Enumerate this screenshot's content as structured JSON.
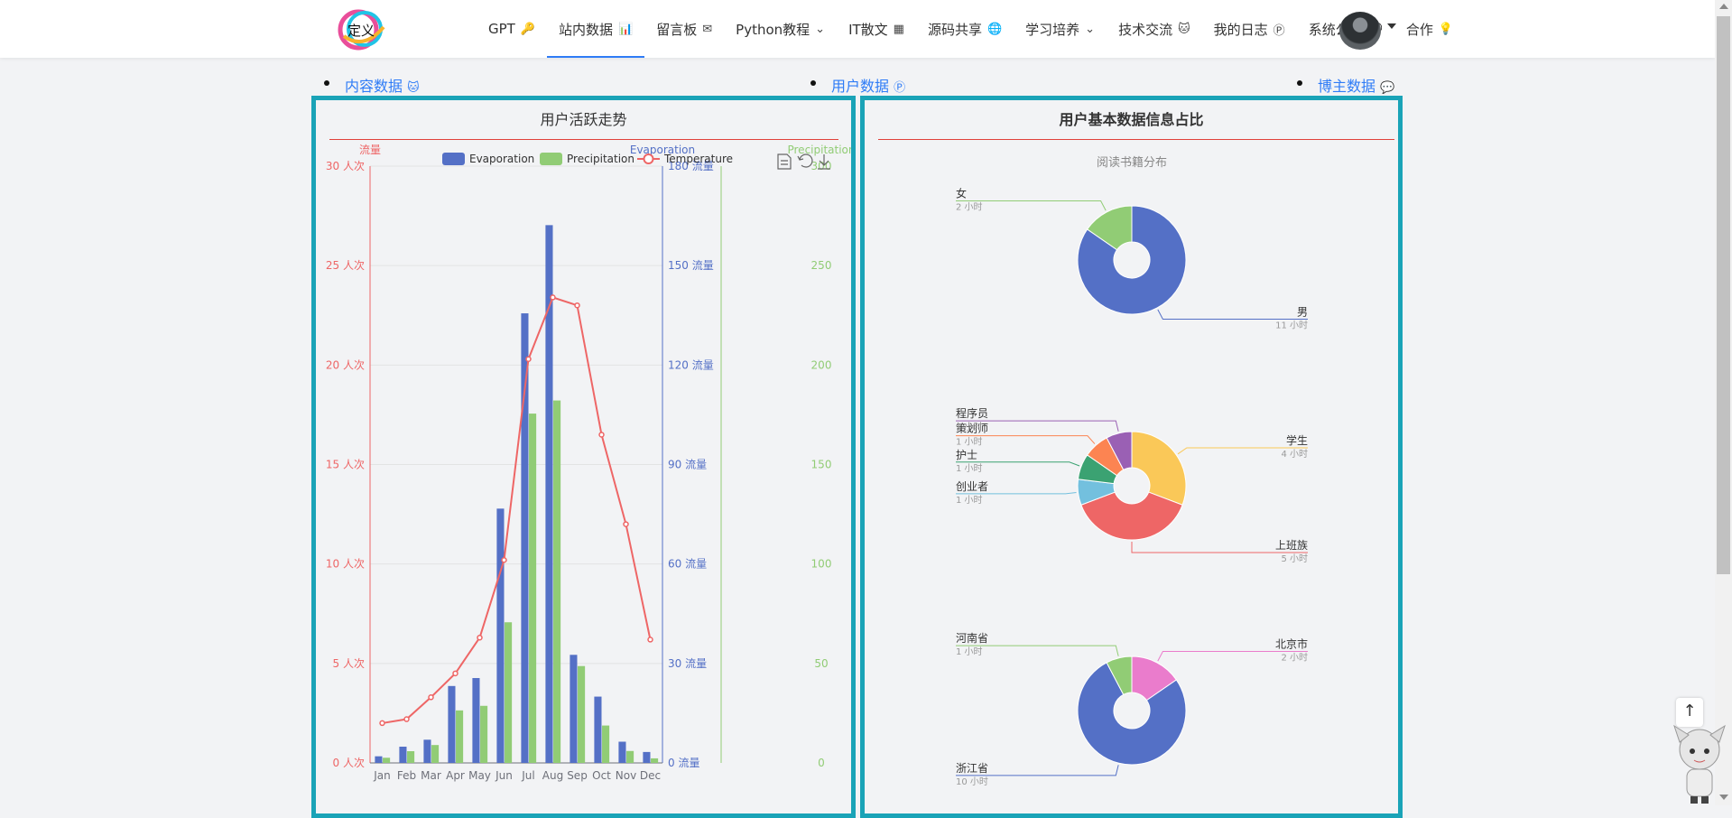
{
  "nav": {
    "logo_text": "定义",
    "items": [
      {
        "label": "GPT",
        "icon": "key-icon",
        "glyph": "🔑"
      },
      {
        "label": "站内数据",
        "icon": "bar-chart-icon",
        "glyph": "📊",
        "active": true
      },
      {
        "label": "留言板",
        "icon": "envelope-icon",
        "glyph": "✉"
      },
      {
        "label": "Python教程",
        "icon": "chevron-down-icon",
        "glyph": "⌄"
      },
      {
        "label": "IT散文",
        "icon": "qrcode-icon",
        "glyph": "▦"
      },
      {
        "label": "源码共享",
        "icon": "globe-icon",
        "glyph": "🌐"
      },
      {
        "label": "学习培养",
        "icon": "chevron-down-icon",
        "glyph": "⌄"
      },
      {
        "label": "技术交流",
        "icon": "github-icon",
        "glyph": "🐱"
      },
      {
        "label": "我的日志",
        "icon": "pinterest-icon",
        "glyph": "Ⓟ"
      },
      {
        "label": "系统公告",
        "icon": "comments-icon",
        "glyph": "💬"
      },
      {
        "label": "合作",
        "icon": "lightbulb-icon",
        "glyph": "💡"
      }
    ]
  },
  "subtabs": [
    {
      "label": "内容数据",
      "glyph": "🐱",
      "icon": "github-icon"
    },
    {
      "label": "用户数据",
      "glyph": "Ⓟ",
      "icon": "pinterest-icon"
    },
    {
      "label": "博主数据",
      "glyph": "💬",
      "icon": "comments-icon"
    }
  ],
  "left_panel": {
    "title": "用户活跃走势"
  },
  "right_panel": {
    "title": "用户基本数据信息占比",
    "subtitle": "阅读书籍分布"
  },
  "colors": {
    "evaporation": "#5470c6",
    "precipitation": "#91cc75",
    "temperature": "#ee6666",
    "panel_border": "#1aa3b7"
  },
  "chart_data": [
    {
      "type": "bar",
      "categories": [
        "Jan",
        "Feb",
        "Mar",
        "Apr",
        "May",
        "Jun",
        "Jul",
        "Aug",
        "Sep",
        "Oct",
        "Nov",
        "Dec"
      ],
      "series": [
        {
          "name": "Evaporation",
          "type": "bar",
          "axis": "流量",
          "values": [
            2.0,
            4.9,
            7.0,
            23.2,
            25.6,
            76.7,
            135.6,
            162.2,
            32.6,
            20.0,
            6.4,
            3.3
          ]
        },
        {
          "name": "Precipitation",
          "type": "bar",
          "axis": "Precipitation",
          "values": [
            2.6,
            5.9,
            9.0,
            26.4,
            28.7,
            70.7,
            175.6,
            182.2,
            48.7,
            18.8,
            6.0,
            2.3
          ]
        },
        {
          "name": "Temperature",
          "type": "line",
          "axis": "流量",
          "values": [
            2.0,
            2.2,
            3.3,
            4.5,
            6.3,
            10.2,
            20.3,
            23.4,
            23.0,
            16.5,
            12.0,
            6.2
          ]
        }
      ],
      "axes": {
        "left": {
          "name": "流量",
          "unit": "人次",
          "range": [
            0,
            30
          ],
          "ticks": [
            "0 人次",
            "5 人次",
            "10 人次",
            "15 人次",
            "20 人次",
            "25 人次",
            "30 人次"
          ]
        },
        "middle": {
          "name": "Evaporation",
          "unit": "流量",
          "range": [
            0,
            180
          ],
          "ticks": [
            "0 流量",
            "30 流量",
            "60 流量",
            "90 流量",
            "120 流量",
            "150 流量",
            "180 流量"
          ]
        },
        "right": {
          "name": "Precipitation",
          "range": [
            0,
            300
          ],
          "ticks": [
            "0",
            "50",
            "100",
            "150",
            "200",
            "250",
            "300"
          ]
        }
      },
      "legend": [
        "Evaporation",
        "Precipitation",
        "Temperature"
      ],
      "legend_position": "top-center"
    },
    {
      "type": "pie",
      "slices": [
        {
          "name": "男",
          "value": 11,
          "label_value": "11 小时",
          "color": "#5470c6"
        },
        {
          "name": "女",
          "value": 2,
          "label_value": "2 小时",
          "color": "#91cc75"
        }
      ]
    },
    {
      "type": "pie",
      "slices": [
        {
          "name": "学生",
          "value": 4,
          "label_value": "4 小时",
          "color": "#fac858"
        },
        {
          "name": "上班族",
          "value": 5,
          "label_value": "5 小时",
          "color": "#ee6666"
        },
        {
          "name": "创业者",
          "value": 1,
          "label_value": "1 小时",
          "color": "#73c0de"
        },
        {
          "name": "护士",
          "value": 1,
          "label_value": "1 小时",
          "color": "#3ba272"
        },
        {
          "name": "策划师",
          "value": 1,
          "label_value": "1 小时",
          "color": "#fc8452"
        },
        {
          "name": "程序员",
          "value": 1,
          "label_value": "1 小时",
          "color": "#9a60b4"
        }
      ]
    },
    {
      "type": "pie",
      "slices": [
        {
          "name": "北京市",
          "value": 2,
          "label_value": "2 小时",
          "color": "#ea7ccc"
        },
        {
          "name": "浙江省",
          "value": 10,
          "label_value": "10 小时",
          "color": "#5470c6"
        },
        {
          "name": "河南省",
          "value": 1,
          "label_value": "1 小时",
          "color": "#91cc75"
        }
      ]
    }
  ]
}
